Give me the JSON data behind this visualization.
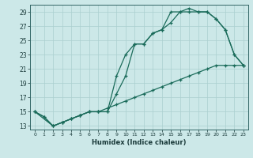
{
  "xlabel": "Humidex (Indice chaleur)",
  "bg_color": "#cce8e8",
  "grid_color": "#aacfcf",
  "line_color": "#1a6b5a",
  "xlim": [
    -0.5,
    23.5
  ],
  "ylim": [
    12.5,
    30
  ],
  "xticks": [
    0,
    1,
    2,
    3,
    4,
    5,
    6,
    7,
    8,
    9,
    10,
    11,
    12,
    13,
    14,
    15,
    16,
    17,
    18,
    19,
    20,
    21,
    22,
    23
  ],
  "yticks": [
    13,
    15,
    17,
    19,
    21,
    23,
    25,
    27,
    29
  ],
  "line1_x": [
    0,
    1,
    2,
    3,
    4,
    5,
    6,
    7,
    8,
    9,
    10,
    11,
    12,
    13,
    14,
    15,
    16,
    17,
    18,
    19,
    20,
    21,
    22,
    23
  ],
  "line1_y": [
    15,
    14.3,
    13.0,
    13.5,
    14.0,
    14.5,
    15.0,
    15.0,
    15.0,
    20.0,
    23.0,
    24.5,
    24.5,
    26.0,
    26.5,
    29.0,
    29.0,
    29.5,
    29.0,
    29.0,
    28.0,
    26.5,
    23.0,
    21.5
  ],
  "line2_x": [
    0,
    1,
    2,
    3,
    4,
    5,
    6,
    7,
    8,
    9,
    10,
    11,
    12,
    13,
    14,
    15,
    16,
    17,
    18,
    19,
    20,
    21,
    22,
    23
  ],
  "line2_y": [
    15,
    14.3,
    13.0,
    13.5,
    14.0,
    14.5,
    15.0,
    15.0,
    15.0,
    17.5,
    20.0,
    24.5,
    24.5,
    26.0,
    26.5,
    27.5,
    29.0,
    29.0,
    29.0,
    29.0,
    28.0,
    26.5,
    23.0,
    21.5
  ],
  "line3_x": [
    0,
    2,
    3,
    4,
    5,
    6,
    7,
    8,
    9,
    10,
    11,
    12,
    13,
    14,
    15,
    16,
    17,
    18,
    19,
    20,
    21,
    22,
    23
  ],
  "line3_y": [
    15,
    13.0,
    13.5,
    14.0,
    14.5,
    15.0,
    15.0,
    15.5,
    16.0,
    16.5,
    17.0,
    17.5,
    18.0,
    18.5,
    19.0,
    19.5,
    20.0,
    20.5,
    21.0,
    21.5,
    21.5,
    21.5,
    21.5
  ]
}
